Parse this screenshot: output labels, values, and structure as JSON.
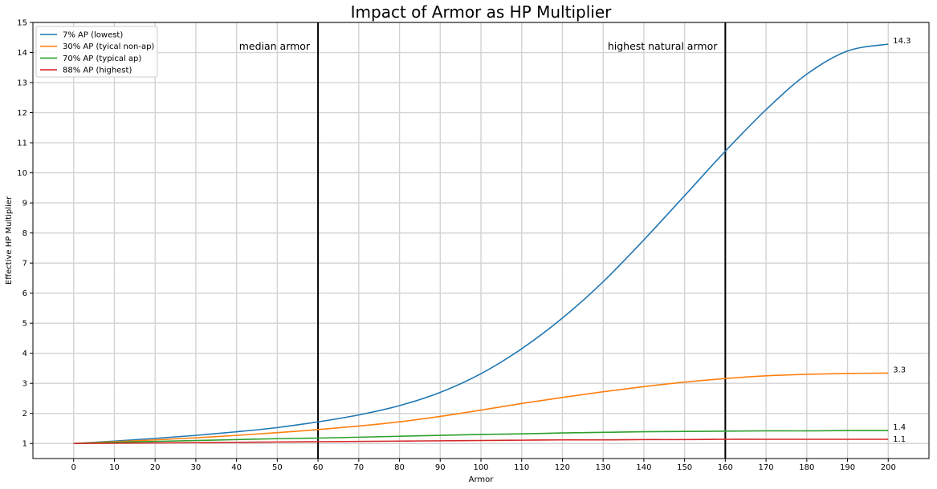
{
  "chart_data": {
    "type": "line",
    "title": "Impact of Armor as HP Multiplier",
    "xlabel": "Armor",
    "ylabel": "Effective HP Multiplier",
    "xlim": [
      -10,
      210
    ],
    "ylim": [
      0.5,
      15
    ],
    "x_ticks": [
      0,
      10,
      20,
      30,
      40,
      50,
      60,
      70,
      80,
      90,
      100,
      110,
      120,
      130,
      140,
      150,
      160,
      170,
      180,
      190,
      200
    ],
    "y_ticks": [
      1,
      2,
      3,
      4,
      5,
      6,
      7,
      8,
      9,
      10,
      11,
      12,
      13,
      14,
      15
    ],
    "grid": true,
    "legend_position": "top-left",
    "series": [
      {
        "name": "7% AP (lowest)",
        "color": "#1f77b4",
        "x": [
          0,
          10,
          20,
          30,
          40,
          50,
          60,
          70,
          80,
          90,
          100,
          110,
          120,
          130,
          140,
          150,
          160,
          170,
          180,
          190,
          200
        ],
        "values": [
          1.0,
          1.08,
          1.17,
          1.27,
          1.39,
          1.53,
          1.72,
          1.95,
          2.26,
          2.7,
          3.32,
          4.15,
          5.17,
          6.38,
          7.77,
          9.24,
          10.72,
          12.1,
          13.28,
          14.05,
          14.28
        ],
        "end_label": "14.3"
      },
      {
        "name": "30% AP (tyical non-ap)",
        "color": "#ff7f0e",
        "x": [
          0,
          10,
          20,
          30,
          40,
          50,
          60,
          70,
          80,
          90,
          100,
          110,
          120,
          130,
          140,
          150,
          160,
          170,
          180,
          190,
          200
        ],
        "values": [
          1.0,
          1.06,
          1.12,
          1.19,
          1.27,
          1.36,
          1.46,
          1.58,
          1.72,
          1.9,
          2.11,
          2.33,
          2.53,
          2.72,
          2.89,
          3.04,
          3.16,
          3.25,
          3.3,
          3.33,
          3.34
        ],
        "end_label": "3.3"
      },
      {
        "name": "70% AP (typical ap)",
        "color": "#2ca02c",
        "x": [
          0,
          10,
          20,
          30,
          40,
          50,
          60,
          70,
          80,
          90,
          100,
          110,
          120,
          130,
          140,
          150,
          160,
          170,
          180,
          190,
          200
        ],
        "values": [
          1.0,
          1.04,
          1.07,
          1.1,
          1.13,
          1.16,
          1.18,
          1.21,
          1.24,
          1.27,
          1.3,
          1.32,
          1.35,
          1.37,
          1.39,
          1.4,
          1.41,
          1.42,
          1.42,
          1.43,
          1.43
        ],
        "end_label": "1.4"
      },
      {
        "name": "88% AP (highest)",
        "color": "#d62728",
        "x": [
          0,
          10,
          20,
          30,
          40,
          50,
          60,
          70,
          80,
          90,
          100,
          110,
          120,
          130,
          140,
          150,
          160,
          170,
          180,
          190,
          200
        ],
        "values": [
          1.0,
          1.01,
          1.02,
          1.03,
          1.04,
          1.05,
          1.06,
          1.07,
          1.08,
          1.09,
          1.1,
          1.11,
          1.12,
          1.12,
          1.13,
          1.13,
          1.14,
          1.14,
          1.14,
          1.14,
          1.14
        ],
        "end_label": "1.1"
      }
    ],
    "vlines": [
      {
        "x": 60,
        "label": "median armor"
      },
      {
        "x": 160,
        "label": "highest natural armor"
      }
    ]
  }
}
